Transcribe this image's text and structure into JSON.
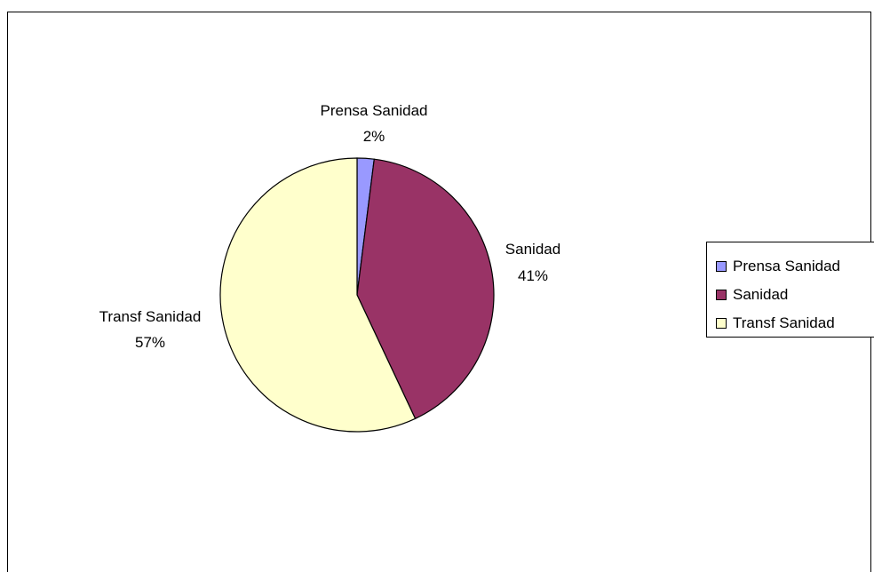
{
  "chart_data": {
    "type": "pie",
    "title": "",
    "slices": [
      {
        "label": "Prensa Sanidad",
        "value": 2,
        "value_label": "2%",
        "color": "#9999ff"
      },
      {
        "label": "Sanidad",
        "value": 41,
        "value_label": "41%",
        "color": "#993366"
      },
      {
        "label": "Transf Sanidad",
        "value": 57,
        "value_label": "57%",
        "color": "#ffffcc"
      }
    ],
    "legend": {
      "position": "right",
      "entries": [
        "Prensa Sanidad",
        "Sanidad",
        "Transf Sanidad"
      ]
    }
  }
}
